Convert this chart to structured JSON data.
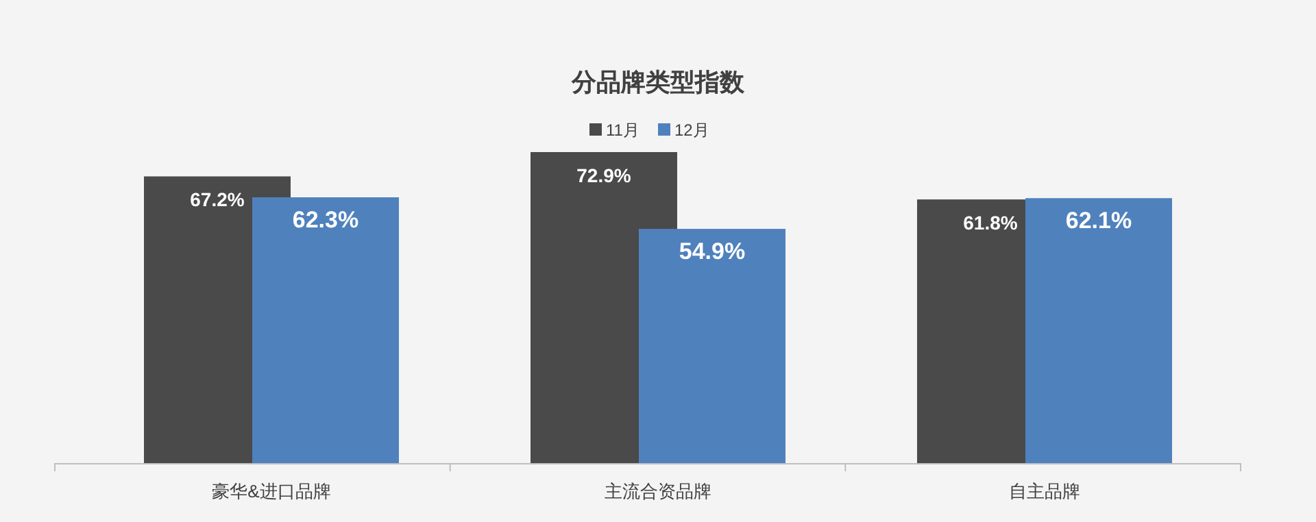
{
  "chart_data": {
    "type": "bar",
    "title": "分品牌类型指数",
    "categories": [
      "豪华&进口品牌",
      "主流合资品牌",
      "自主品牌"
    ],
    "series": [
      {
        "name": "11月",
        "color": "#4a4a4a",
        "values": [
          67.2,
          72.9,
          61.8
        ],
        "value_labels": [
          "67.2%",
          "72.9%",
          "61.8%"
        ]
      },
      {
        "name": "12月",
        "color": "#4f81bd",
        "values": [
          62.3,
          54.9,
          62.1
        ],
        "value_labels": [
          "62.3%",
          "54.9%",
          "62.1%"
        ]
      }
    ],
    "legend": "top"
  }
}
